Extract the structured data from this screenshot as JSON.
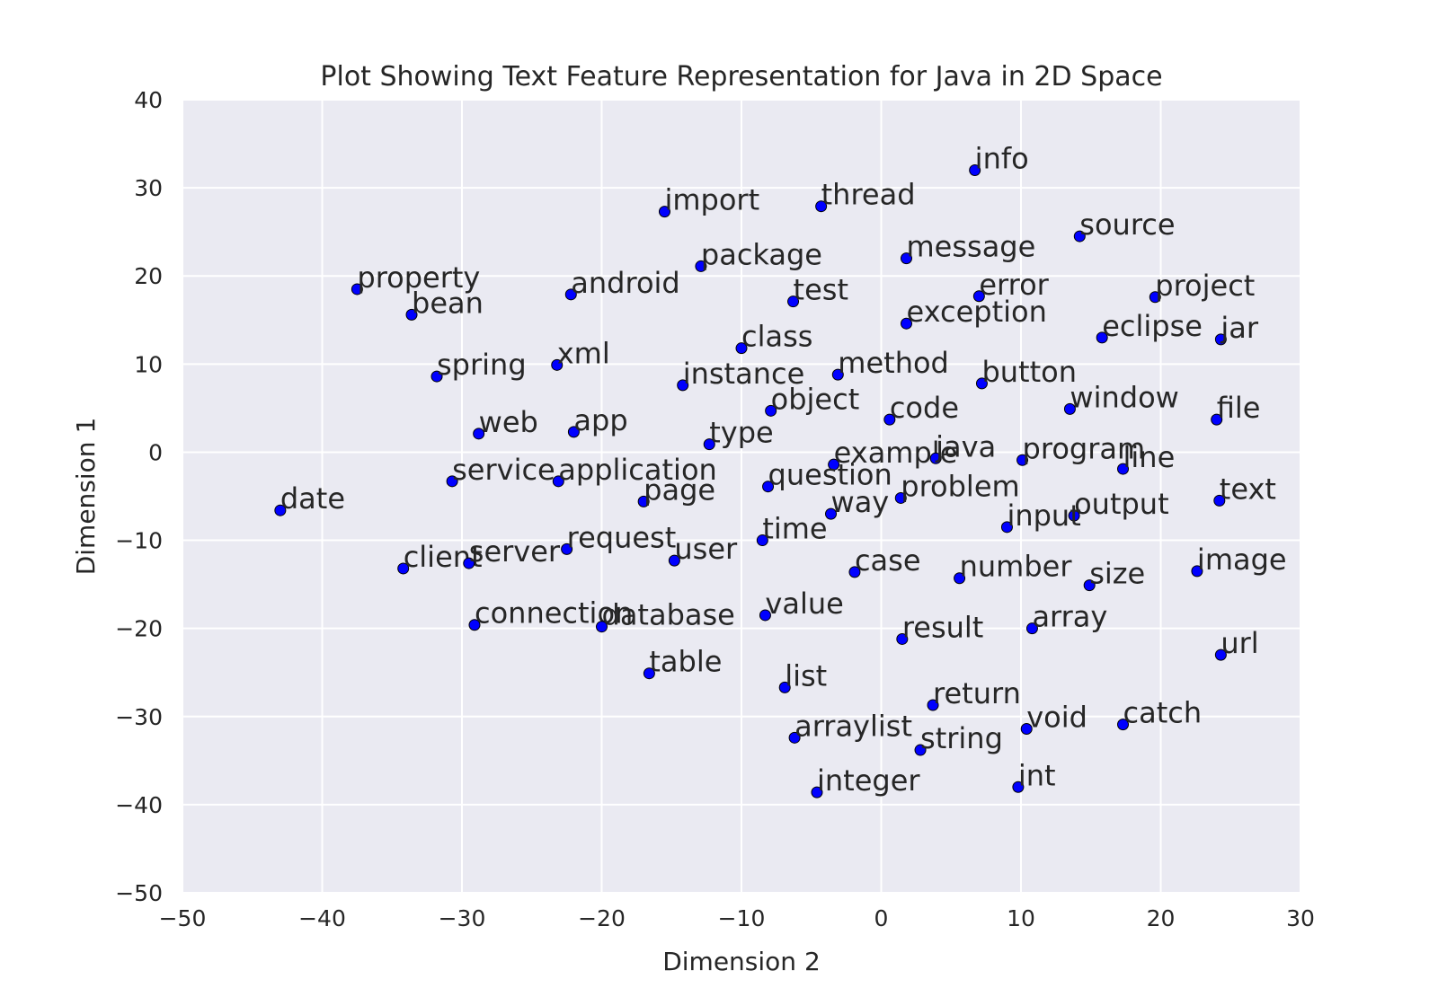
{
  "chart_data": {
    "type": "scatter",
    "title": "Plot Showing Text Feature Representation for Java in 2D Space",
    "xlabel": "Dimension 2",
    "ylabel": "Dimension 1",
    "xlim": [
      -50,
      30
    ],
    "ylim": [
      -50,
      40
    ],
    "xticks": [
      -50,
      -40,
      -30,
      -20,
      -10,
      0,
      10,
      20,
      30
    ],
    "yticks": [
      -50,
      -40,
      -30,
      -20,
      -10,
      0,
      10,
      20,
      30,
      40
    ],
    "xtick_labels": [
      "−50",
      "−40",
      "−30",
      "−20",
      "−10",
      "0",
      "10",
      "20",
      "30"
    ],
    "ytick_labels": [
      "−50",
      "−40",
      "−30",
      "−20",
      "−10",
      "0",
      "10",
      "20",
      "30",
      "40"
    ],
    "grid": true,
    "background": "#eaeaf2",
    "grid_color": "#ffffff",
    "point_color": "#0000ff",
    "points": [
      {
        "label": "info",
        "x": 6.7,
        "y": 32.0
      },
      {
        "label": "import",
        "x": -15.5,
        "y": 27.3
      },
      {
        "label": "thread",
        "x": -4.3,
        "y": 27.9
      },
      {
        "label": "source",
        "x": 14.2,
        "y": 24.5
      },
      {
        "label": "message",
        "x": 1.8,
        "y": 22.0
      },
      {
        "label": "package",
        "x": -12.9,
        "y": 21.1
      },
      {
        "label": "property",
        "x": -37.5,
        "y": 18.5
      },
      {
        "label": "android",
        "x": -22.2,
        "y": 17.9
      },
      {
        "label": "test",
        "x": -6.3,
        "y": 17.1
      },
      {
        "label": "error",
        "x": 7.0,
        "y": 17.7
      },
      {
        "label": "project",
        "x": 19.6,
        "y": 17.6
      },
      {
        "label": "bean",
        "x": -33.6,
        "y": 15.6
      },
      {
        "label": "exception",
        "x": 1.8,
        "y": 14.6
      },
      {
        "label": "eclipse",
        "x": 15.8,
        "y": 13.0
      },
      {
        "label": "jar",
        "x": 24.3,
        "y": 12.8
      },
      {
        "label": "class",
        "x": -10.0,
        "y": 11.8
      },
      {
        "label": "xml",
        "x": -23.2,
        "y": 9.9
      },
      {
        "label": "spring",
        "x": -31.8,
        "y": 8.6
      },
      {
        "label": "method",
        "x": -3.1,
        "y": 8.8
      },
      {
        "label": "instance",
        "x": -14.2,
        "y": 7.6
      },
      {
        "label": "button",
        "x": 7.2,
        "y": 7.8
      },
      {
        "label": "window",
        "x": 13.5,
        "y": 4.9
      },
      {
        "label": "object",
        "x": -7.9,
        "y": 4.7
      },
      {
        "label": "code",
        "x": 0.6,
        "y": 3.7
      },
      {
        "label": "file",
        "x": 24.0,
        "y": 3.7
      },
      {
        "label": "web",
        "x": -28.8,
        "y": 2.1
      },
      {
        "label": "app",
        "x": -22.0,
        "y": 2.3
      },
      {
        "label": "type",
        "x": -12.3,
        "y": 0.9
      },
      {
        "label": "example",
        "x": -3.4,
        "y": -1.4
      },
      {
        "label": "java",
        "x": 3.9,
        "y": -0.7
      },
      {
        "label": "program",
        "x": 10.1,
        "y": -0.9
      },
      {
        "label": "line",
        "x": 17.3,
        "y": -1.9
      },
      {
        "label": "service",
        "x": -30.7,
        "y": -3.3
      },
      {
        "label": "application",
        "x": -23.1,
        "y": -3.3
      },
      {
        "label": "question",
        "x": -8.1,
        "y": -3.9
      },
      {
        "label": "page",
        "x": -17.0,
        "y": -5.6
      },
      {
        "label": "problem",
        "x": 1.4,
        "y": -5.2
      },
      {
        "label": "text",
        "x": 24.2,
        "y": -5.5
      },
      {
        "label": "date",
        "x": -43.0,
        "y": -6.6
      },
      {
        "label": "way",
        "x": -3.6,
        "y": -7.0
      },
      {
        "label": "output",
        "x": 13.8,
        "y": -7.2
      },
      {
        "label": "input",
        "x": 9.0,
        "y": -8.5
      },
      {
        "label": "time",
        "x": -8.5,
        "y": -10.0
      },
      {
        "label": "request",
        "x": -22.5,
        "y": -11.0
      },
      {
        "label": "user",
        "x": -14.8,
        "y": -12.3
      },
      {
        "label": "client",
        "x": -34.2,
        "y": -13.2
      },
      {
        "label": "server",
        "x": -29.5,
        "y": -12.6
      },
      {
        "label": "image",
        "x": 22.6,
        "y": -13.5
      },
      {
        "label": "case",
        "x": -1.9,
        "y": -13.6
      },
      {
        "label": "number",
        "x": 5.6,
        "y": -14.3
      },
      {
        "label": "size",
        "x": 14.9,
        "y": -15.1
      },
      {
        "label": "value",
        "x": -8.3,
        "y": -18.5
      },
      {
        "label": "connection",
        "x": -29.1,
        "y": -19.6
      },
      {
        "label": "database",
        "x": -20.0,
        "y": -19.8
      },
      {
        "label": "array",
        "x": 10.8,
        "y": -20.0
      },
      {
        "label": "result",
        "x": 1.5,
        "y": -21.2
      },
      {
        "label": "url",
        "x": 24.3,
        "y": -23.0
      },
      {
        "label": "table",
        "x": -16.6,
        "y": -25.1
      },
      {
        "label": "list",
        "x": -6.9,
        "y": -26.7
      },
      {
        "label": "return",
        "x": 3.7,
        "y": -28.7
      },
      {
        "label": "catch",
        "x": 17.3,
        "y": -30.9
      },
      {
        "label": "void",
        "x": 10.4,
        "y": -31.4
      },
      {
        "label": "arraylist",
        "x": -6.2,
        "y": -32.4
      },
      {
        "label": "string",
        "x": 2.8,
        "y": -33.8
      },
      {
        "label": "int",
        "x": 9.8,
        "y": -38.0
      },
      {
        "label": "integer",
        "x": -4.6,
        "y": -38.6
      }
    ]
  }
}
